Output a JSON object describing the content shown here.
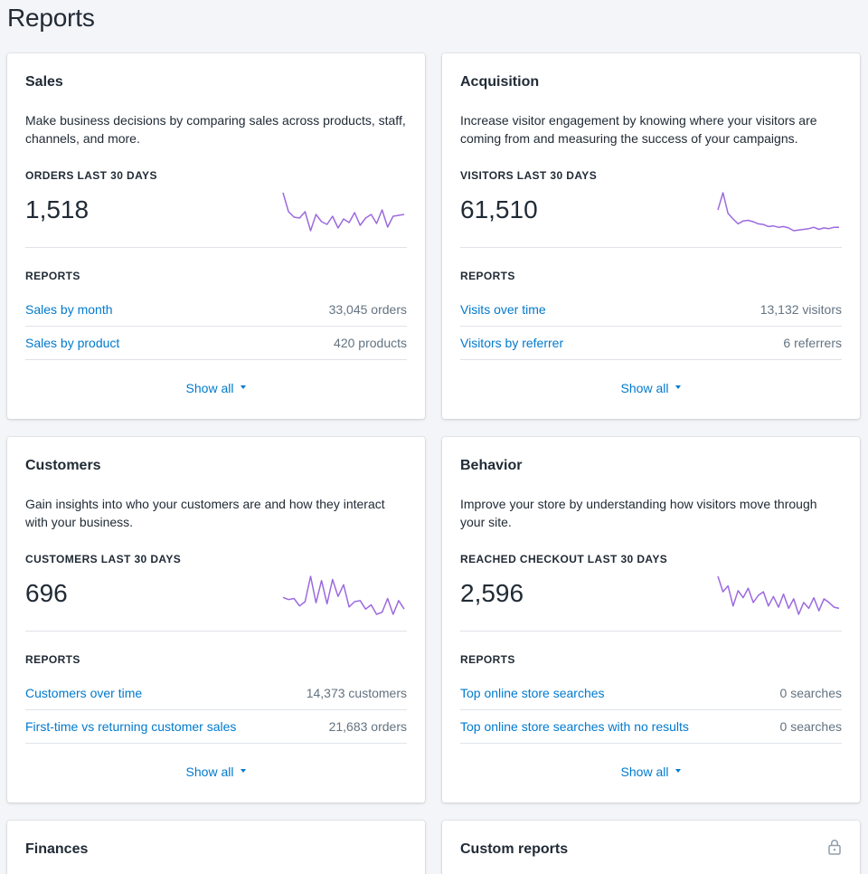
{
  "page": {
    "title": "Reports"
  },
  "cards": {
    "sales": {
      "title": "Sales",
      "description": "Make business decisions by comparing sales across products, staff, channels, and more.",
      "metric_label": "ORDERS LAST 30 DAYS",
      "metric_value": "1,518",
      "sparkline": [
        48,
        27,
        21,
        20,
        27,
        6,
        24,
        16,
        13,
        22,
        9,
        19,
        15,
        26,
        12,
        20,
        24,
        14,
        29,
        10,
        22,
        23,
        24
      ],
      "reports_label": "REPORTS",
      "reports": [
        {
          "label": "Sales by month",
          "count": "33,045 orders"
        },
        {
          "label": "Sales by product",
          "count": "420 products"
        }
      ],
      "show_all": "Show all"
    },
    "acquisition": {
      "title": "Acquisition",
      "description": "Increase visitor engagement by knowing where your visitors are coming from and measuring the success of your campaigns.",
      "metric_label": "VISITORS LAST 30 DAYS",
      "metric_value": "61,510",
      "sparkline": [
        45,
        70,
        40,
        32,
        25,
        29,
        30,
        28,
        25,
        24,
        21,
        22,
        20,
        21,
        19,
        15,
        16,
        17,
        18,
        20,
        17,
        19,
        18,
        20,
        20
      ],
      "reports_label": "REPORTS",
      "reports": [
        {
          "label": "Visits over time",
          "count": "13,132 visitors"
        },
        {
          "label": "Visitors by referrer",
          "count": "6 referrers"
        }
      ],
      "show_all": "Show all"
    },
    "customers": {
      "title": "Customers",
      "description": "Gain insights into who your customers are and how they interact with your business.",
      "metric_label": "CUSTOMERS LAST 30 DAYS",
      "metric_value": "696",
      "sparkline": [
        28,
        26,
        27,
        20,
        24,
        48,
        23,
        44,
        22,
        45,
        29,
        40,
        19,
        24,
        25,
        17,
        21,
        12,
        14,
        27,
        12,
        25,
        17
      ],
      "reports_label": "REPORTS",
      "reports": [
        {
          "label": "Customers over time",
          "count": "14,373 customers"
        },
        {
          "label": "First-time vs returning customer sales",
          "count": "21,683 orders"
        }
      ],
      "show_all": "Show all"
    },
    "behavior": {
      "title": "Behavior",
      "description": "Improve your store by understanding how visitors move through your site.",
      "metric_label": "REACHED CHECKOUT LAST 30 DAYS",
      "metric_value": "2,596",
      "sparkline": [
        46,
        33,
        38,
        21,
        34,
        28,
        36,
        24,
        30,
        33,
        21,
        29,
        20,
        31,
        19,
        27,
        14,
        24,
        19,
        28,
        17,
        27,
        24,
        20,
        19
      ],
      "reports_label": "REPORTS",
      "reports": [
        {
          "label": "Top online store searches",
          "count": "0 searches"
        },
        {
          "label": "Top online store searches with no results",
          "count": "0 searches"
        }
      ],
      "show_all": "Show all"
    },
    "finances": {
      "title": "Finances"
    },
    "custom_reports": {
      "title": "Custom reports",
      "icon": "lock-icon"
    }
  },
  "colors": {
    "sparkline": "#9c6ade",
    "link": "#007ace",
    "muted": "#637381",
    "divider": "#dfe3e8",
    "background": "#f4f5f9"
  }
}
